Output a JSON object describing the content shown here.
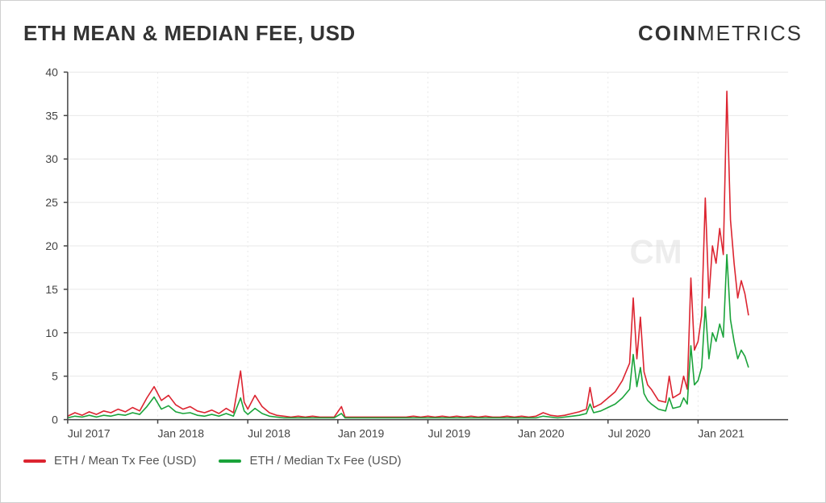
{
  "title": "ETH MEAN & MEDIAN FEE, USD",
  "logo_bold": "COIN",
  "logo_thin": "METRICS",
  "chart": {
    "type": "line",
    "background_color": "#ffffff",
    "grid_color": "#e8e8e8",
    "axis_color": "#444444",
    "tick_fontsize": 14,
    "ylim": [
      0,
      40
    ],
    "ytick_step": 5,
    "yticks": [
      0,
      5,
      10,
      15,
      20,
      25,
      30,
      35,
      40
    ],
    "xlim": [
      0,
      100
    ],
    "xticks": [
      {
        "pos": 0,
        "label": "Jul 2017"
      },
      {
        "pos": 12.5,
        "label": "Jan 2018"
      },
      {
        "pos": 25,
        "label": "Jul 2018"
      },
      {
        "pos": 37.5,
        "label": "Jan 2019"
      },
      {
        "pos": 50,
        "label": "Jul 2019"
      },
      {
        "pos": 62.5,
        "label": "Jan 2020"
      },
      {
        "pos": 75,
        "label": "Jul 2020"
      },
      {
        "pos": 87.5,
        "label": "Jan 2021"
      }
    ],
    "watermark": "CM",
    "series": [
      {
        "name": "mean",
        "label": "ETH / Mean Tx Fee (USD)",
        "color": "#dc2430",
        "width": 1.6,
        "points": [
          [
            0,
            0.4
          ],
          [
            1,
            0.8
          ],
          [
            2,
            0.5
          ],
          [
            3,
            0.9
          ],
          [
            4,
            0.6
          ],
          [
            5,
            1.0
          ],
          [
            6,
            0.8
          ],
          [
            7,
            1.2
          ],
          [
            8,
            0.9
          ],
          [
            9,
            1.4
          ],
          [
            10,
            1.0
          ],
          [
            11,
            2.5
          ],
          [
            12,
            3.8
          ],
          [
            13,
            2.2
          ],
          [
            14,
            2.8
          ],
          [
            15,
            1.7
          ],
          [
            16,
            1.2
          ],
          [
            17,
            1.5
          ],
          [
            18,
            1.0
          ],
          [
            19,
            0.8
          ],
          [
            20,
            1.1
          ],
          [
            21,
            0.7
          ],
          [
            22,
            1.3
          ],
          [
            23,
            0.8
          ],
          [
            24,
            5.6
          ],
          [
            24.5,
            2.0
          ],
          [
            25,
            1.2
          ],
          [
            26,
            2.8
          ],
          [
            27,
            1.5
          ],
          [
            28,
            0.8
          ],
          [
            29,
            0.5
          ],
          [
            30,
            0.4
          ],
          [
            31,
            0.3
          ],
          [
            32,
            0.4
          ],
          [
            33,
            0.3
          ],
          [
            34,
            0.4
          ],
          [
            35,
            0.3
          ],
          [
            36,
            0.3
          ],
          [
            37,
            0.3
          ],
          [
            38,
            1.5
          ],
          [
            38.5,
            0.3
          ],
          [
            39,
            0.3
          ],
          [
            40,
            0.3
          ],
          [
            41,
            0.3
          ],
          [
            42,
            0.3
          ],
          [
            43,
            0.3
          ],
          [
            44,
            0.3
          ],
          [
            45,
            0.3
          ],
          [
            46,
            0.3
          ],
          [
            47,
            0.3
          ],
          [
            48,
            0.4
          ],
          [
            49,
            0.3
          ],
          [
            50,
            0.4
          ],
          [
            51,
            0.3
          ],
          [
            52,
            0.4
          ],
          [
            53,
            0.3
          ],
          [
            54,
            0.4
          ],
          [
            55,
            0.3
          ],
          [
            56,
            0.4
          ],
          [
            57,
            0.3
          ],
          [
            58,
            0.4
          ],
          [
            59,
            0.3
          ],
          [
            60,
            0.3
          ],
          [
            61,
            0.4
          ],
          [
            62,
            0.3
          ],
          [
            63,
            0.4
          ],
          [
            64,
            0.3
          ],
          [
            65,
            0.4
          ],
          [
            66,
            0.8
          ],
          [
            67,
            0.5
          ],
          [
            68,
            0.4
          ],
          [
            69,
            0.5
          ],
          [
            70,
            0.7
          ],
          [
            71,
            0.9
          ],
          [
            72,
            1.2
          ],
          [
            72.5,
            3.7
          ],
          [
            73,
            1.4
          ],
          [
            74,
            1.8
          ],
          [
            75,
            2.5
          ],
          [
            76,
            3.2
          ],
          [
            77,
            4.5
          ],
          [
            78,
            6.5
          ],
          [
            78.5,
            14.0
          ],
          [
            79,
            7.0
          ],
          [
            79.5,
            11.8
          ],
          [
            80,
            5.5
          ],
          [
            80.5,
            4.0
          ],
          [
            81,
            3.5
          ],
          [
            82,
            2.2
          ],
          [
            83,
            2.0
          ],
          [
            83.5,
            5.0
          ],
          [
            84,
            2.5
          ],
          [
            85,
            3.0
          ],
          [
            85.5,
            5.0
          ],
          [
            86,
            3.5
          ],
          [
            86.5,
            16.3
          ],
          [
            87,
            8.0
          ],
          [
            87.5,
            9.0
          ],
          [
            88,
            12.0
          ],
          [
            88.5,
            25.5
          ],
          [
            89,
            14.0
          ],
          [
            89.5,
            20.0
          ],
          [
            90,
            18.0
          ],
          [
            90.5,
            22.0
          ],
          [
            91,
            19.0
          ],
          [
            91.5,
            37.8
          ],
          [
            92,
            23.0
          ],
          [
            92.5,
            18.0
          ],
          [
            93,
            14.0
          ],
          [
            93.5,
            16.0
          ],
          [
            94,
            14.5
          ],
          [
            94.5,
            12.0
          ]
        ]
      },
      {
        "name": "median",
        "label": "ETH / Median Tx Fee (USD)",
        "color": "#1aa33a",
        "width": 1.6,
        "points": [
          [
            0,
            0.2
          ],
          [
            1,
            0.4
          ],
          [
            2,
            0.3
          ],
          [
            3,
            0.5
          ],
          [
            4,
            0.3
          ],
          [
            5,
            0.5
          ],
          [
            6,
            0.4
          ],
          [
            7,
            0.6
          ],
          [
            8,
            0.5
          ],
          [
            9,
            0.8
          ],
          [
            10,
            0.6
          ],
          [
            11,
            1.5
          ],
          [
            12,
            2.6
          ],
          [
            13,
            1.2
          ],
          [
            14,
            1.6
          ],
          [
            15,
            0.9
          ],
          [
            16,
            0.7
          ],
          [
            17,
            0.8
          ],
          [
            18,
            0.5
          ],
          [
            19,
            0.4
          ],
          [
            20,
            0.6
          ],
          [
            21,
            0.4
          ],
          [
            22,
            0.7
          ],
          [
            23,
            0.4
          ],
          [
            24,
            2.5
          ],
          [
            24.5,
            1.0
          ],
          [
            25,
            0.6
          ],
          [
            26,
            1.3
          ],
          [
            27,
            0.7
          ],
          [
            28,
            0.4
          ],
          [
            29,
            0.3
          ],
          [
            30,
            0.2
          ],
          [
            31,
            0.2
          ],
          [
            32,
            0.2
          ],
          [
            33,
            0.2
          ],
          [
            34,
            0.2
          ],
          [
            35,
            0.2
          ],
          [
            36,
            0.2
          ],
          [
            37,
            0.2
          ],
          [
            38,
            0.7
          ],
          [
            38.5,
            0.2
          ],
          [
            39,
            0.2
          ],
          [
            40,
            0.2
          ],
          [
            41,
            0.2
          ],
          [
            42,
            0.2
          ],
          [
            43,
            0.2
          ],
          [
            44,
            0.2
          ],
          [
            45,
            0.2
          ],
          [
            46,
            0.2
          ],
          [
            47,
            0.2
          ],
          [
            48,
            0.2
          ],
          [
            49,
            0.2
          ],
          [
            50,
            0.2
          ],
          [
            51,
            0.2
          ],
          [
            52,
            0.2
          ],
          [
            53,
            0.2
          ],
          [
            54,
            0.2
          ],
          [
            55,
            0.2
          ],
          [
            56,
            0.2
          ],
          [
            57,
            0.2
          ],
          [
            58,
            0.2
          ],
          [
            59,
            0.2
          ],
          [
            60,
            0.2
          ],
          [
            61,
            0.2
          ],
          [
            62,
            0.2
          ],
          [
            63,
            0.2
          ],
          [
            64,
            0.2
          ],
          [
            65,
            0.2
          ],
          [
            66,
            0.4
          ],
          [
            67,
            0.3
          ],
          [
            68,
            0.2
          ],
          [
            69,
            0.3
          ],
          [
            70,
            0.4
          ],
          [
            71,
            0.5
          ],
          [
            72,
            0.7
          ],
          [
            72.5,
            1.8
          ],
          [
            73,
            0.8
          ],
          [
            74,
            1.0
          ],
          [
            75,
            1.4
          ],
          [
            76,
            1.8
          ],
          [
            77,
            2.5
          ],
          [
            78,
            3.5
          ],
          [
            78.5,
            7.5
          ],
          [
            79,
            3.8
          ],
          [
            79.5,
            6.0
          ],
          [
            80,
            3.0
          ],
          [
            80.5,
            2.2
          ],
          [
            81,
            1.8
          ],
          [
            82,
            1.2
          ],
          [
            83,
            1.0
          ],
          [
            83.5,
            2.5
          ],
          [
            84,
            1.3
          ],
          [
            85,
            1.5
          ],
          [
            85.5,
            2.5
          ],
          [
            86,
            1.8
          ],
          [
            86.5,
            8.5
          ],
          [
            87,
            4.0
          ],
          [
            87.5,
            4.5
          ],
          [
            88,
            6.0
          ],
          [
            88.5,
            13.0
          ],
          [
            89,
            7.0
          ],
          [
            89.5,
            10.0
          ],
          [
            90,
            9.0
          ],
          [
            90.5,
            11.0
          ],
          [
            91,
            9.5
          ],
          [
            91.5,
            19.0
          ],
          [
            92,
            11.5
          ],
          [
            92.5,
            9.0
          ],
          [
            93,
            7.0
          ],
          [
            93.5,
            8.0
          ],
          [
            94,
            7.3
          ],
          [
            94.5,
            6.0
          ]
        ]
      }
    ]
  },
  "legend": {
    "item1": "ETH / Mean Tx Fee (USD)",
    "item2": "ETH / Median Tx Fee (USD)"
  }
}
